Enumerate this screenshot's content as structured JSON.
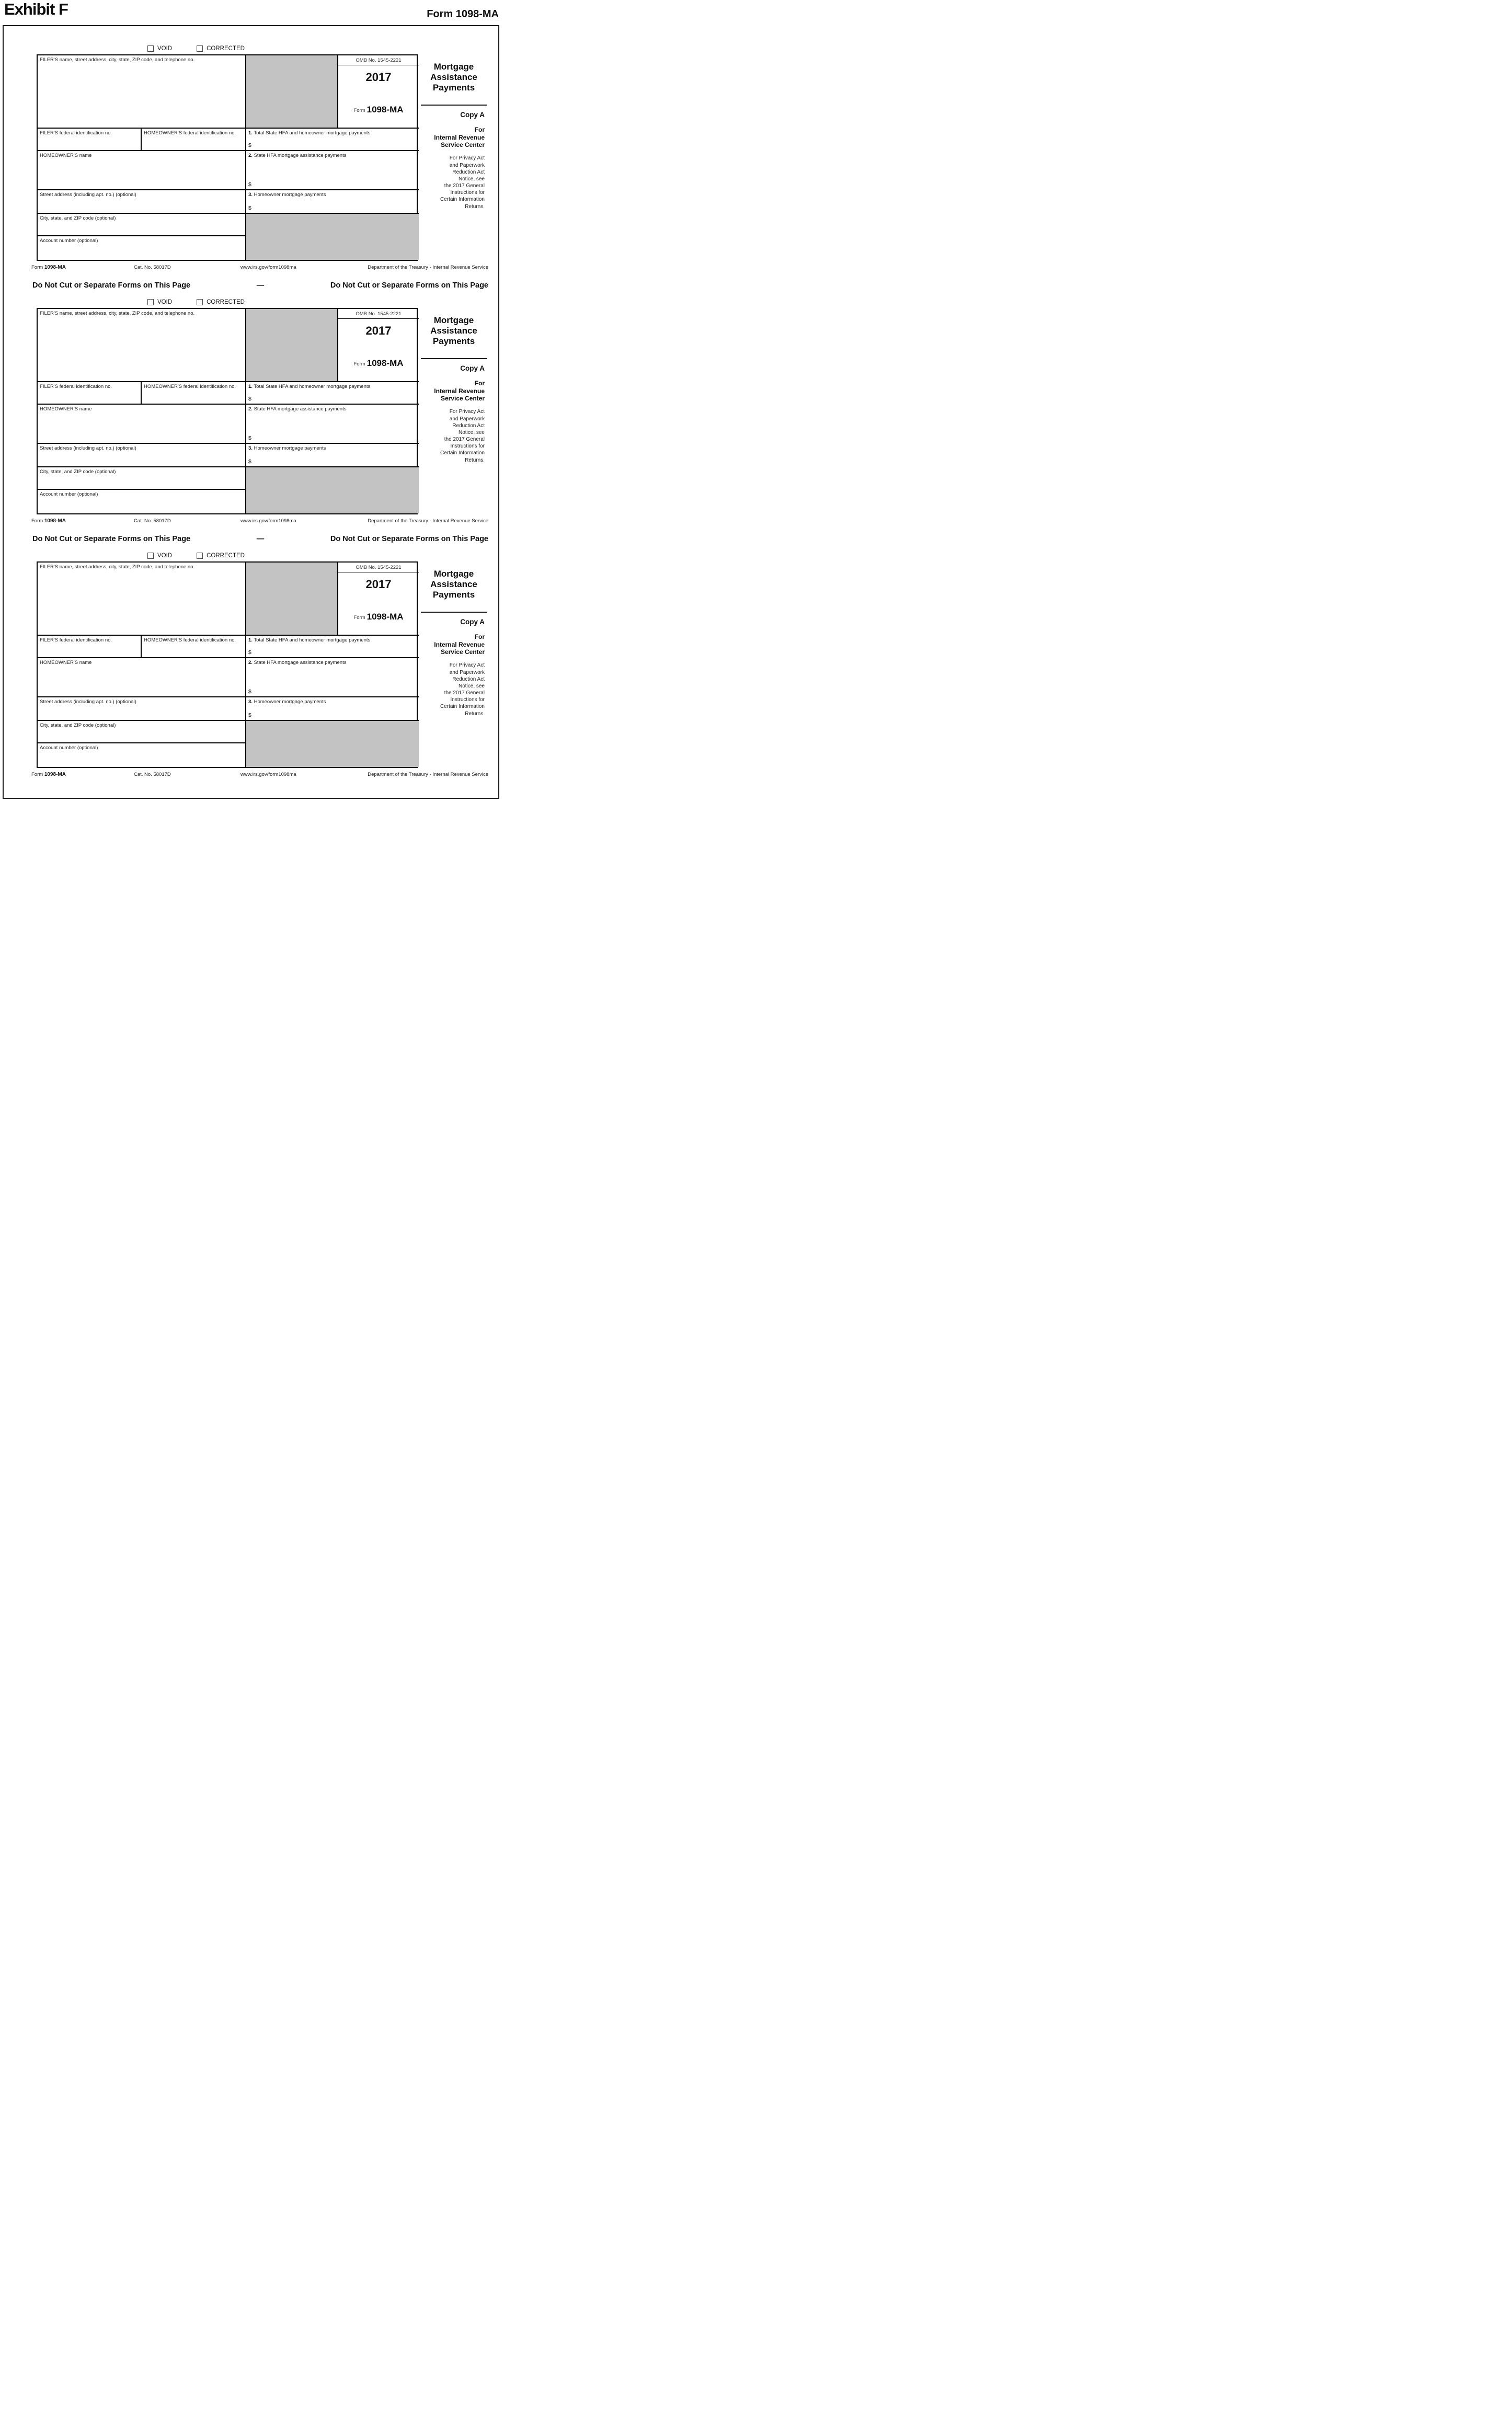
{
  "page": {
    "exhibit_title": "Exhibit F",
    "form_ref": "Form 1098-MA"
  },
  "separator": {
    "text": "Do Not Cut or Separate Forms on This Page",
    "dash": "—"
  },
  "form": {
    "void_label": "VOID",
    "corrected_label": "CORRECTED",
    "filer_name_label": "FILER'S name, street address, city, state, ZIP code, and telephone no.",
    "omb_label": "OMB No. 1545-2221",
    "year": "2017",
    "form_word": "Form",
    "form_number": "1098-MA",
    "title": "Mortgage\nAssistance\nPayments",
    "copy_label": "Copy A",
    "for_irs": "For\nInternal Revenue\nService Center",
    "privacy_notice": "For Privacy Act\nand Paperwork\nReduction Act\nNotice, see\nthe 2017 General\nInstructions for\nCertain Information\nReturns.",
    "filer_id_label": "FILER'S federal identification no.",
    "homeowner_id_label": "HOMEOWNER'S federal identification no.",
    "homeowner_name_label": "HOMEOWNER'S name",
    "street_label": "Street address (including apt. no.) (optional)",
    "city_label": "City, state, and ZIP code (optional)",
    "account_label": "Account number (optional)",
    "box1_num": "1.",
    "box1_label": "Total State HFA and homeowner mortgage payments",
    "box2_num": "2.",
    "box2_label": "State HFA mortgage assistance payments",
    "box3_num": "3.",
    "box3_label": "Homeowner mortgage payments",
    "dollar": "$",
    "footer": {
      "form_word": "Form",
      "form_number": "1098-MA",
      "cat_no": "Cat. No. 58017D",
      "url": "www.irs.gov/form1098ma",
      "department": "Department of the Treasury - Internal Revenue Service"
    }
  },
  "colors": {
    "shaded_area": "#c3c3c3",
    "border": "#000000",
    "text": "#111111"
  }
}
